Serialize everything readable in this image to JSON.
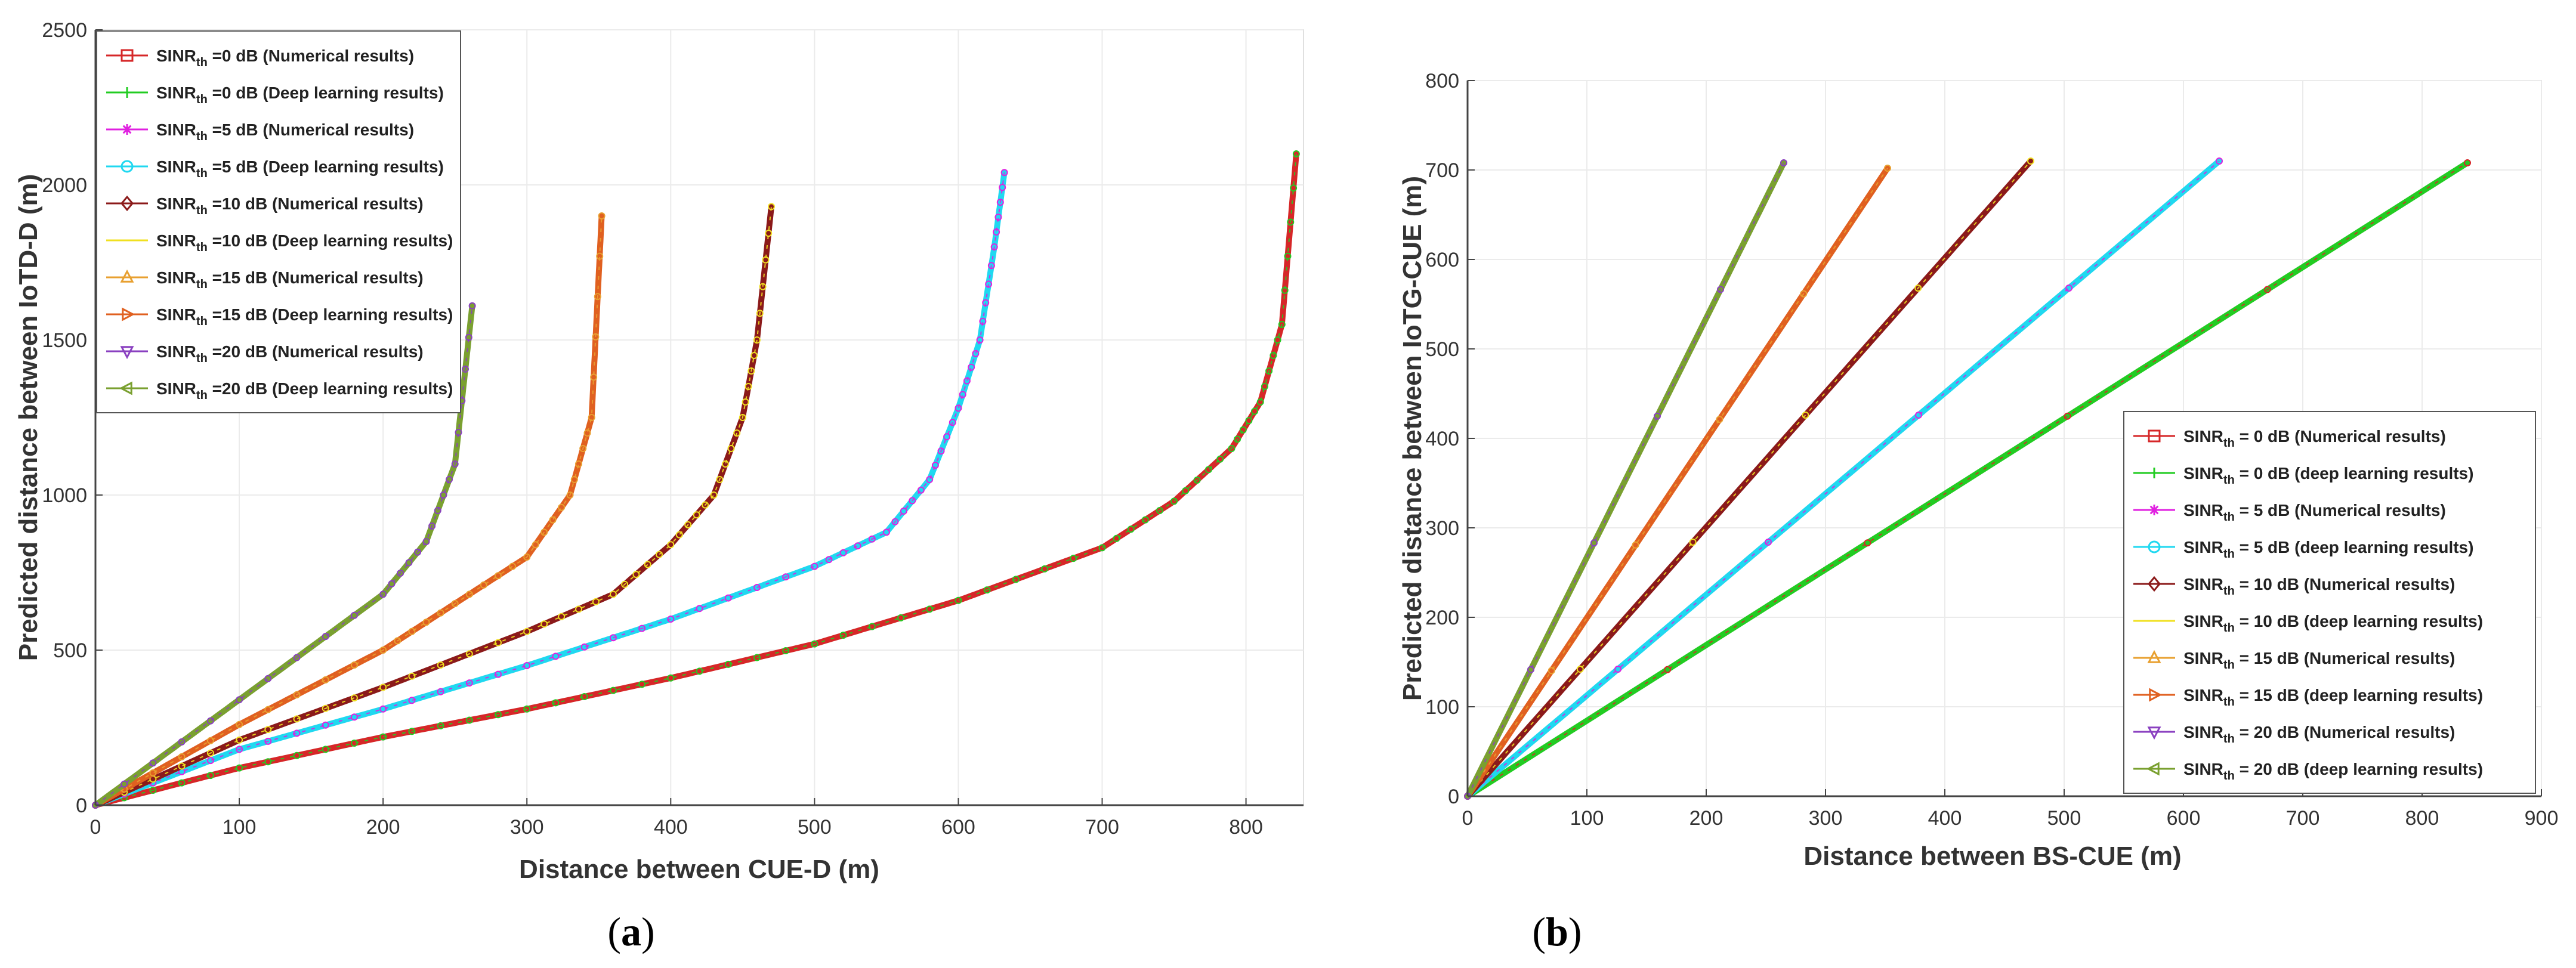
{
  "chart_data": [
    {
      "type": "line",
      "panel_label": "(a)",
      "panel_letter": "a",
      "xlabel": "Distance between CUE-D (m)",
      "ylabel": "Predicted distance between IoTD-D (m)",
      "xlim": [
        0,
        840
      ],
      "ylim": [
        0,
        2500
      ],
      "xticks": [
        0,
        100,
        200,
        300,
        400,
        500,
        600,
        700,
        800
      ],
      "yticks": [
        0,
        500,
        1000,
        1500,
        2000,
        2500
      ],
      "legend": [
        {
          "base": "SINR",
          "sub": "th",
          "rest": " =0 dB (Numerical results)",
          "color": "#d62728",
          "marker": "square"
        },
        {
          "base": "SINR",
          "sub": "th",
          "rest": " =0 dB (Deep learning results)",
          "color": "#22cc22",
          "marker": "plus"
        },
        {
          "base": "SINR",
          "sub": "th",
          "rest": " =5 dB (Numerical results)",
          "color": "#e020e0",
          "marker": "asterisk"
        },
        {
          "base": "SINR",
          "sub": "th",
          "rest": " =5 dB (Deep learning results)",
          "color": "#20d8f0",
          "marker": "circle"
        },
        {
          "base": "SINR",
          "sub": "th",
          "rest": " =10 dB (Numerical results)",
          "color": "#8b1a1a",
          "marker": "diamond"
        },
        {
          "base": "SINR",
          "sub": "th",
          "rest": " =10 dB (Deep learning results)",
          "color": "#f0e020",
          "marker": "none"
        },
        {
          "base": "SINR",
          "sub": "th",
          "rest": " =15 dB (Numerical results)",
          "color": "#e8a030",
          "marker": "triangle-up"
        },
        {
          "base": "SINR",
          "sub": "th",
          "rest": " =15 dB (Deep learning results)",
          "color": "#e06020",
          "marker": "triangle-right"
        },
        {
          "base": "SINR",
          "sub": "th",
          "rest": " =20 dB (Numerical results)",
          "color": "#8a40c0",
          "marker": "triangle-down"
        },
        {
          "base": "SINR",
          "sub": "th",
          "rest": " =20 dB (Deep learning results)",
          "color": "#7aa030",
          "marker": "triangle-left"
        }
      ],
      "series": [
        {
          "name": "SINRth=0 dB",
          "color": "#d62728",
          "color2": "#22cc22",
          "x": [
            0,
            100,
            200,
            300,
            400,
            500,
            600,
            700,
            750,
            790,
            810,
            825,
            835
          ],
          "y": [
            0,
            120,
            220,
            310,
            410,
            520,
            660,
            830,
            980,
            1150,
            1300,
            1550,
            2100
          ]
        },
        {
          "name": "SINRth=5 dB",
          "color": "#20d8f0",
          "color2": "#e020e0",
          "x": [
            0,
            100,
            200,
            300,
            400,
            500,
            550,
            580,
            600,
            615,
            625,
            632
          ],
          "y": [
            0,
            180,
            310,
            450,
            600,
            770,
            880,
            1050,
            1280,
            1500,
            1800,
            2040
          ]
        },
        {
          "name": "SINRth=10 dB",
          "color": "#8b1a1a",
          "color2": "#f0e020",
          "x": [
            0,
            100,
            200,
            300,
            360,
            400,
            430,
            450,
            460,
            470
          ],
          "y": [
            0,
            210,
            380,
            560,
            680,
            840,
            1000,
            1250,
            1500,
            1930
          ]
        },
        {
          "name": "SINRth=15 dB",
          "color": "#e06020",
          "color2": "#e8a030",
          "x": [
            0,
            100,
            200,
            250,
            300,
            330,
            345,
            352
          ],
          "y": [
            0,
            260,
            500,
            650,
            800,
            1000,
            1250,
            1900
          ]
        },
        {
          "name": "SINRth=20 dB",
          "color": "#7aa030",
          "color2": "#8a40c0",
          "x": [
            0,
            100,
            200,
            230,
            250,
            262
          ],
          "y": [
            0,
            340,
            680,
            850,
            1100,
            1610
          ]
        }
      ]
    },
    {
      "type": "line",
      "panel_label": "(b)",
      "panel_letter": "b",
      "xlabel": "Distance between BS-CUE (m)",
      "ylabel": "Predicted distance between IoTG-CUE (m)",
      "xlim": [
        0,
        900
      ],
      "ylim": [
        0,
        800
      ],
      "xticks": [
        0,
        100,
        200,
        300,
        400,
        500,
        600,
        700,
        800,
        900
      ],
      "yticks": [
        0,
        100,
        200,
        300,
        400,
        500,
        600,
        700,
        800
      ],
      "legend": [
        {
          "base": "SINR",
          "sub": "th",
          "rest": " = 0 dB (Numerical results)",
          "color": "#d62728",
          "marker": "square"
        },
        {
          "base": "SINR",
          "sub": "th",
          "rest": " = 0 dB (deep learning results)",
          "color": "#22cc22",
          "marker": "plus"
        },
        {
          "base": "SINR",
          "sub": "th",
          "rest": " = 5 dB (Numerical results)",
          "color": "#e020e0",
          "marker": "asterisk"
        },
        {
          "base": "SINR",
          "sub": "th",
          "rest": " = 5 dB (deep learning results)",
          "color": "#20d8f0",
          "marker": "circle"
        },
        {
          "base": "SINR",
          "sub": "th",
          "rest": " = 10 dB (Numerical results)",
          "color": "#8b1a1a",
          "marker": "diamond"
        },
        {
          "base": "SINR",
          "sub": "th",
          "rest": " = 10 dB (deep learning results)",
          "color": "#f0e020",
          "marker": "none"
        },
        {
          "base": "SINR",
          "sub": "th",
          "rest": " = 15 dB (Numerical results)",
          "color": "#e8a030",
          "marker": "triangle-up"
        },
        {
          "base": "SINR",
          "sub": "th",
          "rest": " = 15 dB (deep learning results)",
          "color": "#e06020",
          "marker": "triangle-right"
        },
        {
          "base": "SINR",
          "sub": "th",
          "rest": " = 20 dB (Numerical results)",
          "color": "#8a40c0",
          "marker": "triangle-down"
        },
        {
          "base": "SINR",
          "sub": "th",
          "rest": " = 20 dB (deep learning results)",
          "color": "#7aa030",
          "marker": "triangle-left"
        }
      ],
      "series": [
        {
          "name": "SINRth=0 dB",
          "color": "#22cc22",
          "color2": "#d62728",
          "x": [
            0,
            838
          ],
          "y": [
            0,
            708
          ]
        },
        {
          "name": "SINRth=5 dB",
          "color": "#20d8f0",
          "color2": "#e020e0",
          "x": [
            0,
            630
          ],
          "y": [
            0,
            710
          ]
        },
        {
          "name": "SINRth=10 dB",
          "color": "#8b1a1a",
          "color2": "#f0e020",
          "x": [
            0,
            472
          ],
          "y": [
            0,
            710
          ]
        },
        {
          "name": "SINRth=15 dB",
          "color": "#e06020",
          "color2": "#e8a030",
          "x": [
            0,
            352
          ],
          "y": [
            0,
            702
          ]
        },
        {
          "name": "SINRth=20 dB",
          "color": "#7aa030",
          "color2": "#8a40c0",
          "x": [
            0,
            265
          ],
          "y": [
            0,
            708
          ]
        }
      ]
    }
  ]
}
